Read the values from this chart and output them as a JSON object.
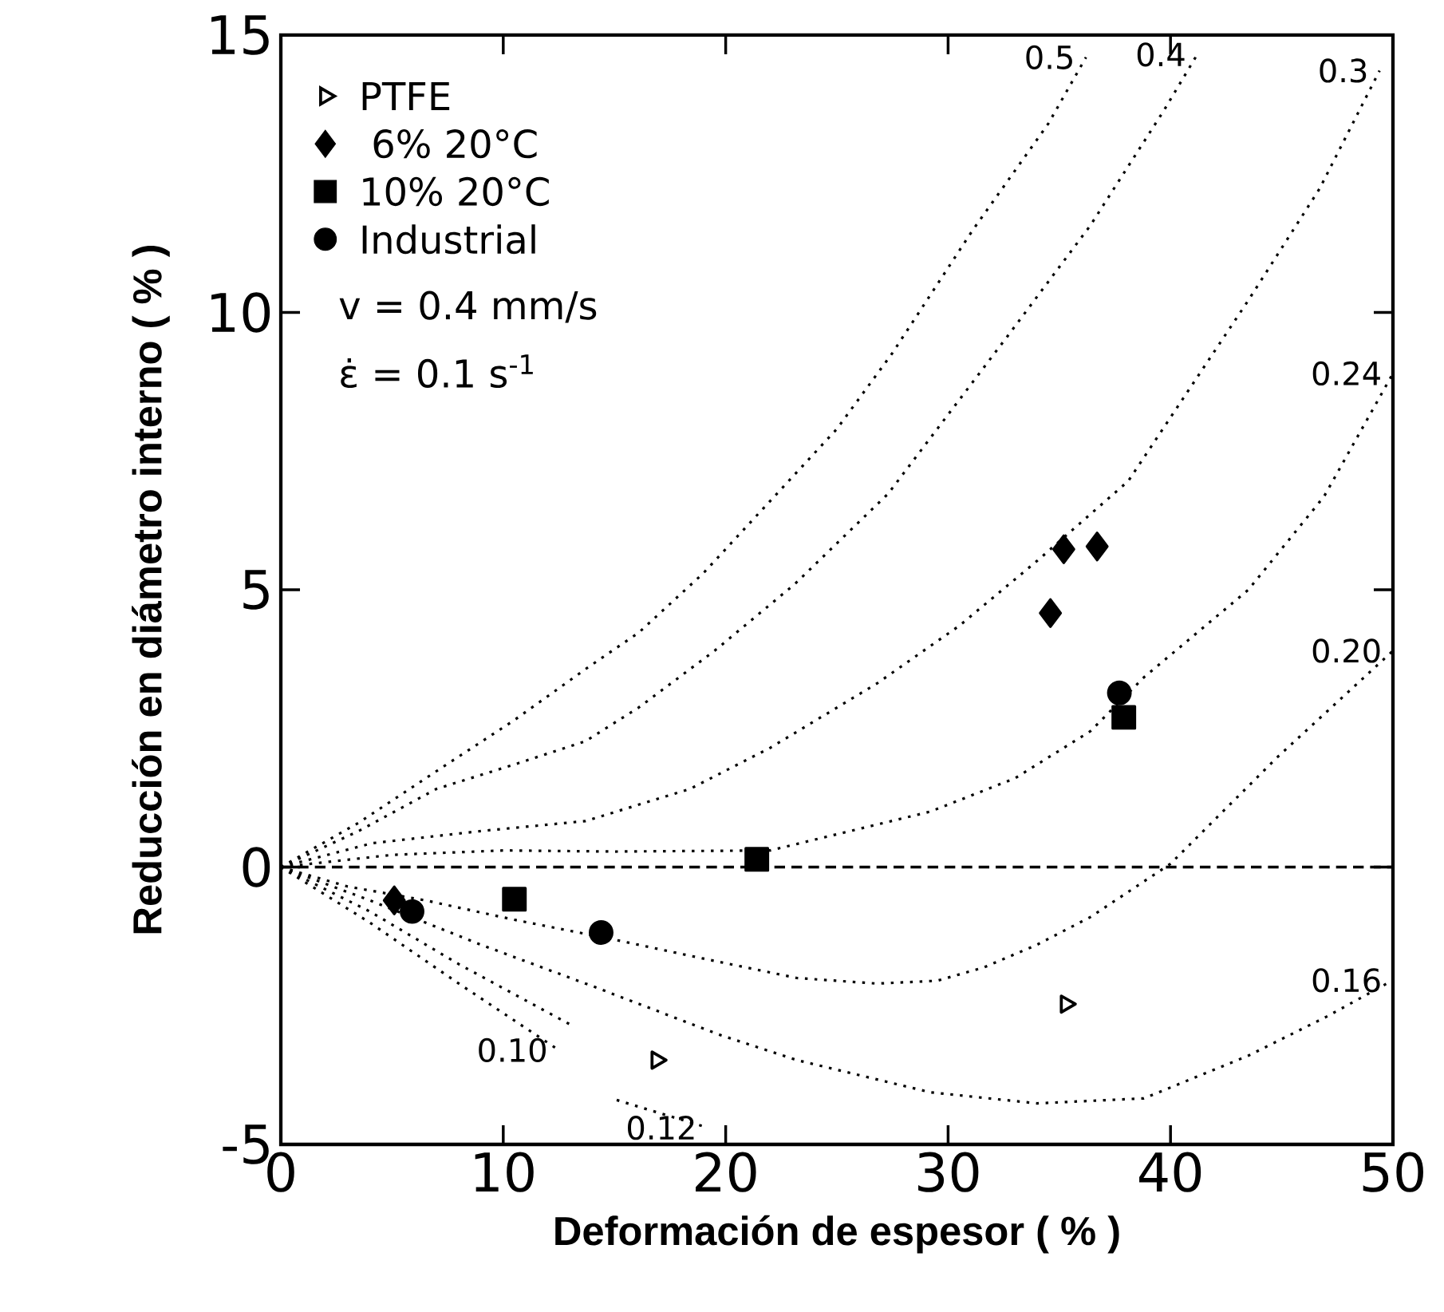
{
  "chart_data": {
    "type": "scatter",
    "xlabel": "Deformación de espesor ( % )",
    "ylabel": "Reducción en diámetro interno ( % )",
    "xlim": [
      0,
      50
    ],
    "ylim": [
      -5,
      15
    ],
    "xticks": [
      0,
      10,
      20,
      30,
      40,
      50
    ],
    "yticks": [
      -5,
      0,
      5,
      10,
      15
    ],
    "grid": false,
    "legend": "top left",
    "annotations": [
      "v = 0.4 mm/s",
      "ε̇ = 0.1 s$^{-1}$"
    ],
    "ref_lines": [
      {
        "axis": "y",
        "value": 0,
        "line_style": "dashed",
        "color": "#000000"
      }
    ],
    "series": [
      {
        "name": "PTFE",
        "marker": "triangle",
        "color": "#000000",
        "x": [
          16.9,
          35.3
        ],
        "values": [
          -3.48,
          -2.47
        ]
      },
      {
        "name": " 6% 20°C",
        "marker": "diamond",
        "color": "#000000",
        "x": [
          5.1,
          35.2,
          36.7,
          34.6
        ],
        "values": [
          -0.6,
          5.73,
          5.78,
          4.58
        ]
      },
      {
        "name": "10% 20°C",
        "marker": "square",
        "color": "#000000",
        "x": [
          10.5,
          21.4,
          37.9
        ],
        "values": [
          -0.58,
          0.14,
          2.7
        ]
      },
      {
        "name": "Industrial",
        "marker": "circle",
        "color": "#000000",
        "x": [
          5.9,
          14.4,
          37.7
        ],
        "values": [
          -0.8,
          -1.18,
          3.14
        ]
      },
      {
        "name": "0.5",
        "type": "line",
        "marker": "none",
        "line_style": "dotted",
        "color": "#000000",
        "x": [
          0,
          3.5,
          7,
          10.5,
          13.7,
          16.1,
          19,
          22,
          25,
          27.5,
          31.1,
          34.5,
          36.2
        ],
        "values": [
          0,
          0.8,
          1.73,
          2.65,
          3.57,
          4.23,
          5.3,
          6.6,
          7.9,
          9.27,
          11.48,
          13.4,
          14.6
        ]
      },
      {
        "name": "0.4",
        "type": "line",
        "marker": "none",
        "line_style": "dotted",
        "color": "#000000",
        "x": [
          0,
          3.5,
          7,
          10.5,
          13.7,
          16.1,
          19.5,
          23.1,
          27.3,
          32.8,
          36.4,
          39.7,
          41.2
        ],
        "values": [
          0,
          0.65,
          1.41,
          1.85,
          2.27,
          2.88,
          3.9,
          5.1,
          6.73,
          9.64,
          11.57,
          13.64,
          14.65
        ]
      },
      {
        "name": "0.3",
        "type": "line",
        "marker": "none",
        "line_style": "dotted",
        "color": "#000000",
        "x": [
          0,
          4.1,
          9,
          13.7,
          18.4,
          22,
          26.8,
          30.5,
          34,
          38.1,
          43.5,
          46.7,
          49.4
        ],
        "values": [
          0,
          0.43,
          0.65,
          0.83,
          1.41,
          2.15,
          3.31,
          4.35,
          5.52,
          6.96,
          10.22,
          12.23,
          14.36
        ]
      },
      {
        "name": "0.24",
        "type": "line",
        "marker": "none",
        "line_style": "dotted",
        "color": "#000000",
        "x": [
          0,
          5,
          10,
          15,
          22,
          29.2,
          33,
          36.4,
          38.8,
          43.5,
          46.9,
          50
        ],
        "values": [
          0,
          0.22,
          0.3,
          0.28,
          0.3,
          1.0,
          1.6,
          2.45,
          3.42,
          5.0,
          6.68,
          8.9
        ]
      },
      {
        "name": "0.20",
        "type": "line",
        "marker": "none",
        "line_style": "dotted",
        "color": "#000000",
        "x": [
          0,
          3,
          6.5,
          10.5,
          14.9,
          19,
          23.2,
          26.8,
          29.5,
          31.6,
          34,
          36.4,
          40,
          44.8,
          50
        ],
        "values": [
          0,
          -0.35,
          -0.6,
          -0.95,
          -1.3,
          -1.65,
          -2.0,
          -2.1,
          -2.05,
          -1.81,
          -1.4,
          -0.9,
          0.06,
          1.98,
          3.9
        ]
      },
      {
        "name": "0.16",
        "type": "line",
        "marker": "none",
        "line_style": "dotted",
        "color": "#000000",
        "x": [
          0,
          4,
          9,
          14.1,
          19.7,
          23.2,
          29.2,
          34,
          38.8,
          43.5,
          47,
          50
        ],
        "values": [
          0,
          -0.6,
          -1.4,
          -2.16,
          -3.02,
          -3.48,
          -4.06,
          -4.26,
          -4.17,
          -3.4,
          -2.7,
          -2.04
        ]
      },
      {
        "name": "0.12",
        "type": "line",
        "marker": "none",
        "line_style": "dotted",
        "color": "#000000",
        "x": [
          0,
          4,
          8,
          13.2,
          14,
          15.1,
          19.2
        ],
        "values": [
          0,
          -0.8,
          -1.75,
          -2.88,
          null,
          -4.2,
          -4.7
        ]
      },
      {
        "name": "0.10",
        "type": "line",
        "marker": "none",
        "line_style": "dotted",
        "color": "#000000",
        "x": [
          0,
          4,
          8,
          12.5
        ],
        "values": [
          0,
          -1.0,
          -2.1,
          -3.3
        ]
      }
    ]
  }
}
